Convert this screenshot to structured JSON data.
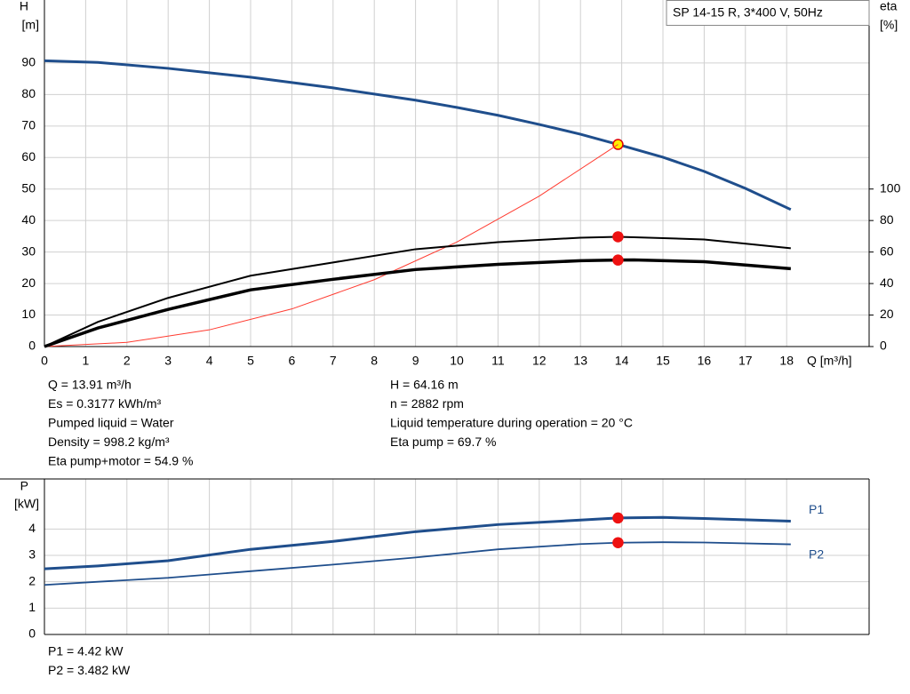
{
  "chart_data": [
    {
      "type": "line",
      "title": "SP 14-15 R, 3*400 V, 50Hz",
      "y_label": "H",
      "y_unit": "[m]",
      "y2_label": "eta",
      "y2_unit": "[%]",
      "x_label": "Q [m³/h]",
      "xlim": [
        0,
        20
      ],
      "xticks": [
        0,
        1,
        2,
        3,
        4,
        5,
        6,
        7,
        8,
        9,
        10,
        11,
        12,
        13,
        14,
        15,
        16,
        17,
        18
      ],
      "ylim": [
        0,
        110
      ],
      "yticks": [
        0,
        10,
        20,
        30,
        40,
        50,
        60,
        70,
        80,
        90
      ],
      "y2lim": [
        0,
        220
      ],
      "y2ticks": [
        0,
        20,
        40,
        60,
        80,
        100
      ],
      "grid": true,
      "series": [
        {
          "color": "#1f4e8c",
          "width": 3,
          "x": [
            0,
            1.3,
            3,
            5,
            7,
            9,
            10,
            11,
            12,
            13,
            13.91,
            15,
            16,
            17,
            18.1
          ],
          "values": [
            90.7,
            90.2,
            88.3,
            85.5,
            82.1,
            78.2,
            75.9,
            73.4,
            70.5,
            67.4,
            64.16,
            60.1,
            55.6,
            50.2,
            43.5
          ],
          "marker": {
            "x": 13.91,
            "value": 64.16,
            "fill": "#ffee00",
            "stroke": "#e00000"
          }
        },
        {
          "color": "#ff3b30",
          "width": 1,
          "x": [
            0,
            2,
            4,
            6,
            8,
            10,
            12,
            13.91
          ],
          "values": [
            0,
            1.33,
            5.31,
            11.94,
            21.22,
            33.16,
            47.75,
            64.16
          ]
        },
        {
          "color": "#000000",
          "width": 2,
          "axis": "y2",
          "x": [
            0,
            1.3,
            3,
            5,
            7,
            9,
            11,
            13,
            13.91,
            14.3,
            16,
            18.1
          ],
          "values": [
            0,
            15.7,
            30.9,
            45,
            53.4,
            61.8,
            66.3,
            69.1,
            69.7,
            69.4,
            68,
            62.4
          ],
          "marker": {
            "x": 13.91,
            "value": 69.7,
            "fill": "#ee1111",
            "stroke": "#ee1111"
          }
        },
        {
          "color": "#000000",
          "width": 3.5,
          "axis": "y2",
          "x": [
            0,
            1.3,
            3,
            5,
            7,
            9,
            11,
            13,
            13.91,
            14.3,
            16,
            18.1
          ],
          "values": [
            0,
            11.8,
            23.6,
            36,
            42.7,
            48.9,
            52.2,
            54.5,
            54.9,
            55,
            53.9,
            49.4
          ],
          "marker": {
            "x": 13.91,
            "value": 54.9,
            "fill": "#ee1111",
            "stroke": "#ee1111"
          }
        }
      ]
    },
    {
      "type": "line",
      "y_label": "P",
      "y_unit": "[kW]",
      "xlim": [
        0,
        20
      ],
      "ylim": [
        0,
        5.9
      ],
      "yticks": [
        0,
        1,
        2,
        3,
        4
      ],
      "grid": true,
      "series": [
        {
          "name": "P1",
          "color": "#1f4e8c",
          "width": 3,
          "x": [
            0,
            1.3,
            3,
            5,
            7,
            9,
            11,
            13,
            13.91,
            15,
            16,
            18.1
          ],
          "values": [
            2.49,
            2.6,
            2.8,
            3.23,
            3.53,
            3.9,
            4.17,
            4.34,
            4.42,
            4.44,
            4.4,
            4.3
          ],
          "marker": {
            "x": 13.91,
            "value": 4.42,
            "fill": "#ee1111",
            "stroke": "#ee1111"
          }
        },
        {
          "name": "P2",
          "color": "#1f4e8c",
          "width": 1.8,
          "x": [
            0,
            1.3,
            3,
            5,
            7,
            9,
            11,
            13,
            13.91,
            15,
            16,
            18.1
          ],
          "values": [
            1.88,
            2.0,
            2.15,
            2.4,
            2.65,
            2.92,
            3.23,
            3.43,
            3.482,
            3.5,
            3.49,
            3.42
          ],
          "marker": {
            "x": 13.91,
            "value": 3.482,
            "fill": "#ee1111",
            "stroke": "#ee1111"
          }
        }
      ]
    }
  ],
  "info": {
    "left": [
      "Q = 13.91 m³/h",
      "Es = 0.3177 kWh/m³",
      "Pumped liquid = Water",
      "Density = 998.2 kg/m³",
      "Eta pump+motor = 54.9 %"
    ],
    "right": [
      "H = 64.16 m",
      "n = 2882 rpm",
      "Liquid temperature during operation = 20 °C",
      "Eta pump = 69.7 %"
    ],
    "power": [
      "P1 = 4.42 kW",
      "P2 = 3.482 kW"
    ]
  }
}
